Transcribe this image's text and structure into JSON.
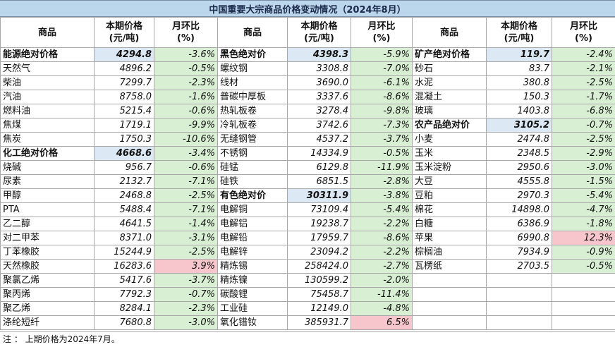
{
  "title": "中国重要大宗商品价格变动情况（2024年8月）",
  "headers": {
    "name": "商品",
    "price_l1": "本期价格",
    "price_l2": "(元/吨)",
    "chg_l1": "月环比",
    "chg_l2": "(%)"
  },
  "colors": {
    "up": "#f7c6cc",
    "down": "#d8efd3",
    "group_price": "#dce8f4",
    "title_bg": "#bcd7ec"
  },
  "rows": [
    [
      {
        "name": "能源绝对价格",
        "price": "4294.8",
        "chg": "-3.6%",
        "group": true
      },
      {
        "name": "黑色绝对价",
        "price": "4398.3",
        "chg": "-5.9%",
        "group": true
      },
      {
        "name": "矿产绝对价格",
        "price": "119.7",
        "chg": "-2.4%",
        "group": true
      }
    ],
    [
      {
        "name": "天然气",
        "price": "4896.2",
        "chg": "-0.5%"
      },
      {
        "name": "螺纹钢",
        "price": "3308.8",
        "chg": "-7.0%"
      },
      {
        "name": "砂石",
        "price": "83.7",
        "chg": "-2.1%"
      }
    ],
    [
      {
        "name": "柴油",
        "price": "7299.7",
        "chg": "-2.3%"
      },
      {
        "name": "线材",
        "price": "3690.0",
        "chg": "-6.1%"
      },
      {
        "name": "水泥",
        "price": "380.8",
        "chg": "-2.5%"
      }
    ],
    [
      {
        "name": "汽油",
        "price": "8758.0",
        "chg": "-1.6%"
      },
      {
        "name": "普碳中厚板",
        "price": "3337.6",
        "chg": "-8.6%"
      },
      {
        "name": "混凝土",
        "price": "150.3",
        "chg": "-1.7%"
      }
    ],
    [
      {
        "name": "燃料油",
        "price": "5215.4",
        "chg": "-0.6%"
      },
      {
        "name": "热轧板卷",
        "price": "3278.4",
        "chg": "-9.8%"
      },
      {
        "name": "玻璃",
        "price": "1403.8",
        "chg": "-6.8%"
      }
    ],
    [
      {
        "name": "焦煤",
        "price": "1719.1",
        "chg": "-9.9%"
      },
      {
        "name": "冷轧板卷",
        "price": "3742.6",
        "chg": "-7.3%"
      },
      {
        "name": "农产品绝对价",
        "price": "3105.2",
        "chg": "-0.7%",
        "group": true
      }
    ],
    [
      {
        "name": "焦炭",
        "price": "1750.3",
        "chg": "-10.6%"
      },
      {
        "name": "无缝钢管",
        "price": "4537.2",
        "chg": "-3.7%"
      },
      {
        "name": "小麦",
        "price": "2474.8",
        "chg": "-2.5%"
      }
    ],
    [
      {
        "name": "化工绝对价格",
        "price": "4668.6",
        "chg": "-3.4%",
        "group": true
      },
      {
        "name": "不锈钢",
        "price": "14334.9",
        "chg": "-0.5%"
      },
      {
        "name": "玉米",
        "price": "2348.5",
        "chg": "-2.9%"
      }
    ],
    [
      {
        "name": "烧碱",
        "price": "956.7",
        "chg": "-0.6%"
      },
      {
        "name": "硅锰",
        "price": "6129.8",
        "chg": "-11.9%"
      },
      {
        "name": "玉米淀粉",
        "price": "2950.6",
        "chg": "-3.0%"
      }
    ],
    [
      {
        "name": "尿素",
        "price": "2132.7",
        "chg": "-7.1%"
      },
      {
        "name": "硅铁",
        "price": "6851.5",
        "chg": "-2.8%"
      },
      {
        "name": "大豆",
        "price": "4555.8",
        "chg": "-1.5%"
      }
    ],
    [
      {
        "name": "甲醇",
        "price": "2468.8",
        "chg": "-2.5%"
      },
      {
        "name": "有色绝对价",
        "price": "30311.9",
        "chg": "-3.8%",
        "group": true
      },
      {
        "name": "豆粕",
        "price": "2970.3",
        "chg": "-5.4%"
      }
    ],
    [
      {
        "name": "PTA",
        "price": "5488.4",
        "chg": "-7.1%"
      },
      {
        "name": "电解铜",
        "price": "73109.4",
        "chg": "-5.4%"
      },
      {
        "name": "棉花",
        "price": "14898.0",
        "chg": "-4.7%"
      }
    ],
    [
      {
        "name": "乙二醇",
        "price": "4641.5",
        "chg": "-1.4%"
      },
      {
        "name": "电解铝",
        "price": "19238.7",
        "chg": "-2.2%"
      },
      {
        "name": "白糖",
        "price": "6386.9",
        "chg": "-1.8%"
      }
    ],
    [
      {
        "name": "对二甲苯",
        "price": "8371.0",
        "chg": "-3.1%"
      },
      {
        "name": "电解铅",
        "price": "17959.7",
        "chg": "-8.6%"
      },
      {
        "name": "苹果",
        "price": "6990.8",
        "chg": "12.3%",
        "up": true
      }
    ],
    [
      {
        "name": "丁苯橡胶",
        "price": "15244.9",
        "chg": "-2.5%"
      },
      {
        "name": "电解锌",
        "price": "23094.2",
        "chg": "-2.2%"
      },
      {
        "name": "棕榈油",
        "price": "7934.9",
        "chg": "-0.9%"
      }
    ],
    [
      {
        "name": "天然橡胶",
        "price": "16283.6",
        "chg": "3.9%",
        "up": true
      },
      {
        "name": "精炼锡",
        "price": "258424.0",
        "chg": "-2.7%"
      },
      {
        "name": "瓦楞纸",
        "price": "2703.5",
        "chg": "-0.5%"
      }
    ],
    [
      {
        "name": "聚氯乙烯",
        "price": "5417.6",
        "chg": "-3.7%"
      },
      {
        "name": "精炼镍",
        "price": "130599.2",
        "chg": "-2.0%"
      },
      null
    ],
    [
      {
        "name": "聚丙烯",
        "price": "7792.3",
        "chg": "-0.7%"
      },
      {
        "name": "碳酸锂",
        "price": "75458.7",
        "chg": "-11.4%"
      },
      null
    ],
    [
      {
        "name": "聚乙烯",
        "price": "8284.1",
        "chg": "-2.3%"
      },
      {
        "name": "工业硅",
        "price": "12149.0",
        "chg": "-4.8%"
      },
      null
    ],
    [
      {
        "name": "涤纶短纤",
        "price": "7680.8",
        "chg": "-3.0%"
      },
      {
        "name": "氧化镨钕",
        "price": "385931.7",
        "chg": "6.5%",
        "up": true
      },
      null
    ]
  ],
  "note": "注 ： 上期价格为2024年7月。"
}
